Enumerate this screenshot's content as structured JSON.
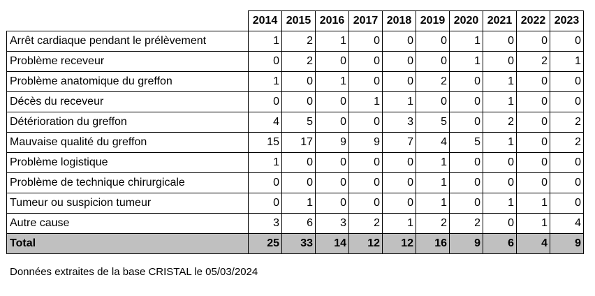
{
  "table": {
    "years": [
      "2014",
      "2015",
      "2016",
      "2017",
      "2018",
      "2019",
      "2020",
      "2021",
      "2022",
      "2023"
    ],
    "rows": [
      {
        "label": "Arrêt cardiaque pendant le prélèvement",
        "values": [
          "1",
          "2",
          "1",
          "0",
          "0",
          "0",
          "1",
          "0",
          "0",
          "0"
        ]
      },
      {
        "label": "Problème receveur",
        "values": [
          "0",
          "2",
          "0",
          "0",
          "0",
          "0",
          "1",
          "0",
          "2",
          "1"
        ]
      },
      {
        "label": "Problème anatomique du greffon",
        "values": [
          "1",
          "0",
          "1",
          "0",
          "0",
          "2",
          "0",
          "1",
          "0",
          "0"
        ]
      },
      {
        "label": "Décès du receveur",
        "values": [
          "0",
          "0",
          "0",
          "1",
          "1",
          "0",
          "0",
          "1",
          "0",
          "0"
        ]
      },
      {
        "label": "Détérioration du greffon",
        "values": [
          "4",
          "5",
          "0",
          "0",
          "3",
          "5",
          "0",
          "2",
          "0",
          "2"
        ]
      },
      {
        "label": "Mauvaise qualité du greffon",
        "values": [
          "15",
          "17",
          "9",
          "9",
          "7",
          "4",
          "5",
          "1",
          "0",
          "2"
        ]
      },
      {
        "label": "Problème logistique",
        "values": [
          "1",
          "0",
          "0",
          "0",
          "0",
          "1",
          "0",
          "0",
          "0",
          "0"
        ]
      },
      {
        "label": "Problème de technique chirurgicale",
        "values": [
          "0",
          "0",
          "0",
          "0",
          "0",
          "1",
          "0",
          "0",
          "0",
          "0"
        ]
      },
      {
        "label": "Tumeur ou suspicion tumeur",
        "values": [
          "0",
          "1",
          "0",
          "0",
          "0",
          "1",
          "0",
          "1",
          "1",
          "0"
        ]
      },
      {
        "label": "Autre cause",
        "values": [
          "3",
          "6",
          "3",
          "2",
          "1",
          "2",
          "2",
          "0",
          "1",
          "4"
        ]
      }
    ],
    "total": {
      "label": "Total",
      "values": [
        "25",
        "33",
        "14",
        "12",
        "12",
        "16",
        "9",
        "6",
        "4",
        "9"
      ]
    },
    "total_background": "#c0c0c0"
  },
  "footnote": "Données extraites de la base CRISTAL le 05/03/2024"
}
